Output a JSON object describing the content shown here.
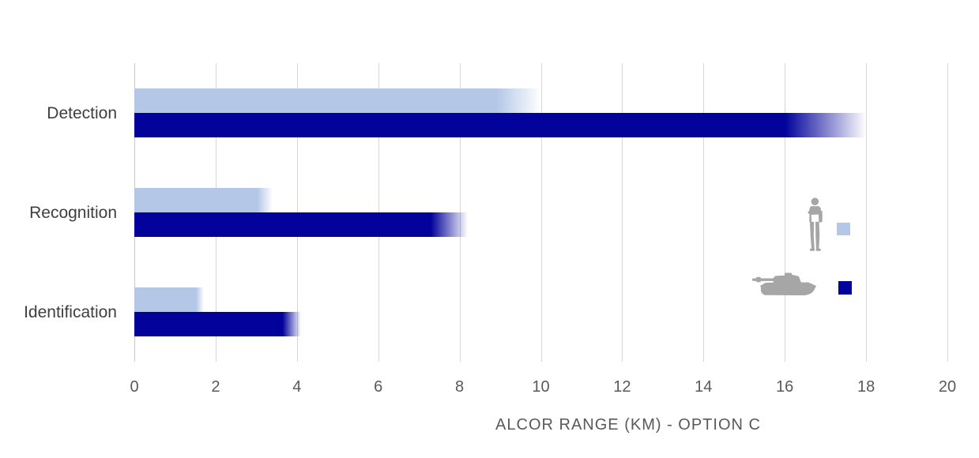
{
  "chart_data": {
    "type": "bar",
    "orientation": "horizontal",
    "title": "",
    "xlabel": "ALCOR RANGE (KM) - OPTION C",
    "ylabel": "",
    "categories": [
      "Detection",
      "Recognition",
      "Identification"
    ],
    "series": [
      {
        "name": "person",
        "legend_icon": "soldier-icon",
        "color": "#b4c7e7",
        "values": [
          10,
          3.4,
          1.7
        ]
      },
      {
        "name": "tank",
        "legend_icon": "tank-icon",
        "color": "#03039b",
        "values": [
          18,
          8.2,
          4.1
        ]
      }
    ],
    "xlim": [
      0,
      20
    ],
    "xticks": [
      0,
      2,
      4,
      6,
      8,
      10,
      12,
      14,
      16,
      18,
      20
    ],
    "xtick_labels": [
      "0",
      "2",
      "4",
      "6",
      "8",
      "10",
      "12",
      "14",
      "16",
      "18",
      "20"
    ],
    "grid": true,
    "legend_position": "right-middle",
    "bar_tip_style": "fade-to-white"
  },
  "axis": {
    "title": "ALCOR RANGE (KM) - OPTION C"
  },
  "colors": {
    "bar_light": "#b4c7e7",
    "bar_dark": "#03039b",
    "gridline": "#d6d6d6",
    "category_text": "#3f3f3f",
    "tick_text": "#595959",
    "axis_title_text": "#595959",
    "legend_silhouette": "#a6a6a6",
    "background": "#ffffff"
  },
  "legend": {
    "person_icon": "soldier-icon",
    "tank_icon": "tank-icon"
  }
}
